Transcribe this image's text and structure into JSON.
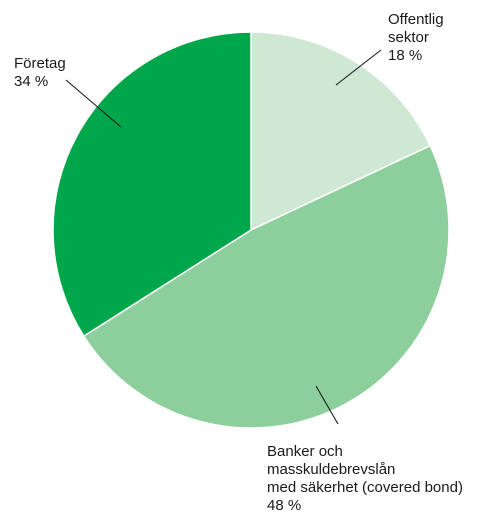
{
  "chart_data": {
    "type": "pie",
    "title": "",
    "start_angle_deg": 0,
    "direction": "clockwise",
    "slices": [
      {
        "label_lines": [
          "Offentlig",
          "sektor"
        ],
        "value": 18,
        "value_label": "18 %",
        "color": "#cfe8d3"
      },
      {
        "label_lines": [
          "Banker och",
          "masskuldebrevslån",
          "med säkerhet (covered bond)"
        ],
        "value": 48,
        "value_label": "48 %",
        "color": "#8ccf9c"
      },
      {
        "label_lines": [
          "Företag"
        ],
        "value": 34,
        "value_label": "34 %",
        "color": "#00a64a"
      }
    ]
  }
}
